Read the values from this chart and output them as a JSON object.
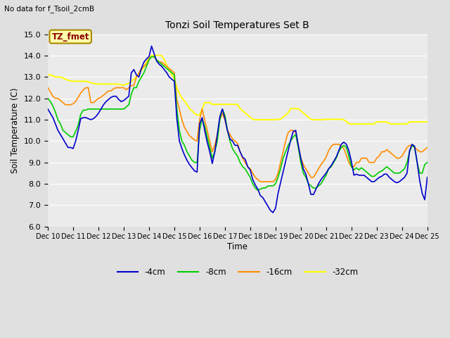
{
  "title": "Tonzi Soil Temperatures Set B",
  "subtitle": "No data for f_Tsoil_2cmB",
  "xlabel": "Time",
  "ylabel": "Soil Temperature (C)",
  "ylim": [
    6.0,
    15.0
  ],
  "yticks": [
    6.0,
    7.0,
    8.0,
    9.0,
    10.0,
    11.0,
    12.0,
    13.0,
    14.0,
    15.0
  ],
  "xtick_labels": [
    "Dec 10",
    "Dec 11",
    "Dec 12",
    "Dec 13",
    "Dec 14",
    "Dec 15",
    "Dec 16",
    "Dec 17",
    "Dec 18",
    "Dec 19",
    "Dec 20",
    "Dec 21",
    "Dec 22",
    "Dec 23",
    "Dec 24",
    "Dec 25"
  ],
  "annotation_text": "TZ_fmet",
  "annotation_color": "#8B0000",
  "annotation_bg": "#FFFFAA",
  "annotation_edge": "#AA8800",
  "fig_bg": "#E0E0E0",
  "plot_bg": "#EBEBEB",
  "grid_color": "#FFFFFF",
  "colors": {
    "4cm": "#0000CC",
    "8cm": "#00CC00",
    "16cm": "#FF8C00",
    "32cm": "#FFFF00"
  },
  "y_4cm": [
    11.5,
    11.3,
    11.1,
    10.8,
    10.5,
    10.3,
    10.1,
    9.9,
    9.7,
    9.7,
    9.65,
    10.0,
    10.5,
    11.05,
    11.1,
    11.1,
    11.05,
    11.0,
    11.05,
    11.15,
    11.3,
    11.5,
    11.7,
    11.85,
    11.95,
    12.05,
    12.1,
    12.1,
    11.95,
    11.85,
    11.9,
    12.0,
    12.1,
    13.2,
    13.35,
    13.1,
    13.0,
    13.4,
    13.7,
    13.85,
    13.95,
    14.45,
    14.1,
    13.75,
    13.6,
    13.5,
    13.35,
    13.2,
    13.0,
    12.9,
    12.8,
    11.05,
    10.0,
    9.65,
    9.35,
    9.1,
    8.9,
    8.75,
    8.6,
    8.55,
    10.8,
    11.1,
    10.5,
    9.95,
    9.5,
    8.95,
    9.5,
    10.3,
    11.15,
    11.5,
    11.05,
    10.5,
    10.1,
    10.0,
    9.8,
    9.8,
    9.5,
    9.25,
    9.15,
    8.8,
    8.65,
    8.2,
    7.95,
    7.75,
    7.45,
    7.35,
    7.15,
    6.95,
    6.75,
    6.65,
    6.85,
    7.55,
    8.05,
    8.55,
    9.05,
    9.55,
    10.05,
    10.45,
    10.5,
    9.8,
    9.2,
    8.7,
    8.45,
    8.0,
    7.5,
    7.5,
    7.75,
    8.0,
    8.2,
    8.35,
    8.5,
    8.7,
    8.85,
    9.05,
    9.25,
    9.55,
    9.85,
    9.95,
    9.85,
    9.55,
    9.05,
    8.4,
    8.45,
    8.4,
    8.4,
    8.4,
    8.3,
    8.2,
    8.1,
    8.1,
    8.2,
    8.3,
    8.35,
    8.45,
    8.45,
    8.3,
    8.2,
    8.1,
    8.05,
    8.1,
    8.2,
    8.3,
    8.5,
    9.55,
    9.85,
    9.75,
    9.0,
    8.15,
    7.55,
    7.25,
    8.3
  ],
  "y_8cm": [
    12.0,
    11.85,
    11.65,
    11.35,
    11.0,
    10.8,
    10.5,
    10.4,
    10.3,
    10.2,
    10.2,
    10.45,
    10.75,
    11.25,
    11.45,
    11.45,
    11.5,
    11.5,
    11.5,
    11.5,
    11.5,
    11.5,
    11.5,
    11.5,
    11.5,
    11.5,
    11.5,
    11.5,
    11.5,
    11.5,
    11.5,
    11.6,
    11.7,
    12.2,
    12.5,
    12.5,
    12.8,
    13.0,
    13.2,
    13.5,
    13.8,
    13.95,
    13.95,
    13.8,
    13.7,
    13.6,
    13.5,
    13.4,
    13.3,
    13.2,
    13.1,
    11.5,
    10.5,
    10.0,
    9.8,
    9.5,
    9.3,
    9.1,
    9.0,
    9.0,
    10.5,
    11.05,
    10.7,
    10.2,
    9.7,
    9.2,
    9.5,
    10.0,
    11.0,
    11.5,
    11.2,
    10.5,
    10.0,
    9.65,
    9.45,
    9.3,
    9.0,
    8.8,
    8.7,
    8.5,
    8.3,
    8.0,
    7.8,
    7.7,
    7.75,
    7.8,
    7.8,
    7.9,
    7.9,
    7.9,
    8.0,
    8.3,
    8.7,
    9.2,
    9.5,
    9.8,
    10.0,
    10.2,
    10.3,
    9.7,
    9.0,
    8.5,
    8.3,
    8.0,
    7.9,
    7.8,
    7.8,
    7.9,
    8.0,
    8.2,
    8.4,
    8.7,
    8.8,
    9.0,
    9.2,
    9.5,
    9.7,
    9.8,
    9.7,
    9.3,
    8.8,
    8.65,
    8.75,
    8.65,
    8.75,
    8.65,
    8.55,
    8.45,
    8.35,
    8.35,
    8.45,
    8.55,
    8.6,
    8.7,
    8.8,
    8.7,
    8.6,
    8.5,
    8.5,
    8.5,
    8.6,
    8.7,
    9.0,
    9.5,
    9.8,
    9.7,
    9.0,
    8.5,
    8.5,
    8.9,
    9.0
  ],
  "y_16cm": [
    12.5,
    12.3,
    12.1,
    12.0,
    12.0,
    11.9,
    11.8,
    11.7,
    11.7,
    11.7,
    11.75,
    11.85,
    12.05,
    12.25,
    12.4,
    12.5,
    12.5,
    11.8,
    11.8,
    11.9,
    12.0,
    12.05,
    12.15,
    12.25,
    12.35,
    12.35,
    12.45,
    12.5,
    12.5,
    12.5,
    12.5,
    12.4,
    12.5,
    12.6,
    12.6,
    13.0,
    13.2,
    13.4,
    13.5,
    13.6,
    13.85,
    13.95,
    13.95,
    13.8,
    13.7,
    13.7,
    13.6,
    13.5,
    13.4,
    13.3,
    13.2,
    11.95,
    11.5,
    11.0,
    10.65,
    10.45,
    10.25,
    10.15,
    10.05,
    10.0,
    11.0,
    11.5,
    11.0,
    10.5,
    10.0,
    9.5,
    9.8,
    10.3,
    11.0,
    11.3,
    11.0,
    10.5,
    10.3,
    10.1,
    10.0,
    9.9,
    9.5,
    9.2,
    9.0,
    8.8,
    8.7,
    8.5,
    8.3,
    8.2,
    8.1,
    8.1,
    8.1,
    8.1,
    8.1,
    8.1,
    8.2,
    8.5,
    9.0,
    9.5,
    10.0,
    10.4,
    10.5,
    10.5,
    10.4,
    9.8,
    9.2,
    8.9,
    8.7,
    8.5,
    8.3,
    8.3,
    8.5,
    8.7,
    8.9,
    9.05,
    9.25,
    9.55,
    9.75,
    9.85,
    9.85,
    9.85,
    9.75,
    9.65,
    9.35,
    9.0,
    8.8,
    8.8,
    9.0,
    9.0,
    9.2,
    9.2,
    9.2,
    9.0,
    9.0,
    9.0,
    9.2,
    9.3,
    9.5,
    9.5,
    9.6,
    9.5,
    9.4,
    9.3,
    9.2,
    9.2,
    9.3,
    9.5,
    9.7,
    9.8,
    9.8,
    9.7,
    9.6,
    9.5,
    9.5,
    9.6,
    9.7
  ],
  "y_32cm": [
    13.1,
    13.1,
    13.05,
    13.0,
    13.0,
    13.0,
    12.95,
    12.9,
    12.85,
    12.82,
    12.8,
    12.8,
    12.8,
    12.8,
    12.8,
    12.8,
    12.78,
    12.73,
    12.7,
    12.68,
    12.67,
    12.67,
    12.67,
    12.67,
    12.67,
    12.67,
    12.67,
    12.67,
    12.67,
    12.63,
    12.62,
    12.67,
    12.7,
    12.8,
    12.9,
    13.0,
    13.12,
    13.3,
    13.5,
    13.7,
    13.9,
    14.0,
    14.02,
    14.02,
    14.02,
    14.0,
    13.82,
    13.55,
    13.32,
    13.1,
    12.9,
    12.5,
    12.22,
    12.02,
    11.88,
    11.72,
    11.52,
    11.42,
    11.3,
    11.22,
    11.22,
    11.5,
    11.8,
    11.8,
    11.8,
    11.72,
    11.72,
    11.72,
    11.72,
    11.72,
    11.72,
    11.72,
    11.72,
    11.72,
    11.72,
    11.72,
    11.52,
    11.42,
    11.32,
    11.22,
    11.12,
    11.02,
    11.0,
    11.0,
    11.0,
    11.0,
    11.0,
    11.0,
    11.0,
    11.0,
    11.0,
    11.02,
    11.02,
    11.12,
    11.22,
    11.32,
    11.52,
    11.52,
    11.52,
    11.52,
    11.42,
    11.32,
    11.22,
    11.12,
    11.02,
    11.0,
    11.0,
    11.0,
    11.0,
    11.0,
    11.02,
    11.02,
    11.02,
    11.02,
    11.02,
    11.02,
    11.02,
    11.0,
    10.92,
    10.82,
    10.8,
    10.8,
    10.8,
    10.8,
    10.8,
    10.8,
    10.8,
    10.8,
    10.8,
    10.8,
    10.9,
    10.9,
    10.9,
    10.9,
    10.9,
    10.82,
    10.8,
    10.8,
    10.8,
    10.8,
    10.8,
    10.8,
    10.8,
    10.9,
    10.9,
    10.9,
    10.9,
    10.9,
    10.9,
    10.9,
    10.9
  ]
}
